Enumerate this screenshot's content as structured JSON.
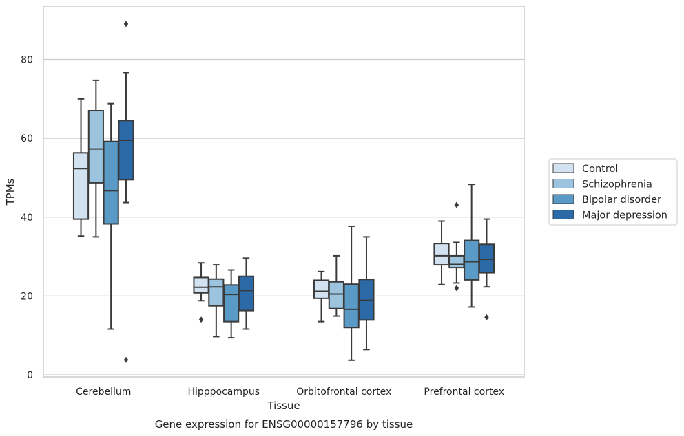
{
  "caption": "Gene expression for ENSG00000157796 by tissue",
  "chart_data": {
    "type": "box",
    "title": "",
    "xlabel": "Tissue",
    "ylabel": "TPMs",
    "ylim": [
      0,
      93
    ],
    "yticks": [
      0,
      20,
      40,
      60,
      80
    ],
    "grid": "horizontal",
    "legend_position": "right",
    "categories": [
      "Cerebellum",
      "Hipppocampus",
      "Orbitofrontal cortex",
      "Prefrontal cortex"
    ],
    "series": [
      {
        "name": "Control",
        "color": "#d3e2f1",
        "boxes": [
          {
            "whislo": 35.2,
            "q1": 39.5,
            "med": 52.3,
            "q3": 56.3,
            "whishi": 70.0,
            "fliers": []
          },
          {
            "whislo": 18.8,
            "q1": 20.8,
            "med": 22.2,
            "q3": 24.7,
            "whishi": 28.4,
            "fliers": [
              14.0
            ]
          },
          {
            "whislo": 13.5,
            "q1": 19.4,
            "med": 21.2,
            "q3": 24.0,
            "whishi": 26.2,
            "fliers": []
          },
          {
            "whislo": 22.9,
            "q1": 27.9,
            "med": 30.2,
            "q3": 33.3,
            "whishi": 39.0,
            "fliers": []
          }
        ]
      },
      {
        "name": "Schizophrenia",
        "color": "#9cc4de",
        "boxes": [
          {
            "whislo": 35.0,
            "q1": 48.7,
            "med": 57.3,
            "q3": 67.0,
            "whishi": 74.7,
            "fliers": []
          },
          {
            "whislo": 9.7,
            "q1": 17.5,
            "med": 22.3,
            "q3": 24.3,
            "whishi": 27.9,
            "fliers": []
          },
          {
            "whislo": 14.9,
            "q1": 16.8,
            "med": 20.5,
            "q3": 23.6,
            "whishi": 30.2,
            "fliers": []
          },
          {
            "whislo": 23.3,
            "q1": 27.2,
            "med": 28.0,
            "q3": 30.2,
            "whishi": 33.6,
            "fliers": [
              22.0,
              43.1
            ]
          }
        ]
      },
      {
        "name": "Bipolar disorder",
        "color": "#5a9ac6",
        "boxes": [
          {
            "whislo": 11.6,
            "q1": 38.3,
            "med": 46.7,
            "q3": 59.2,
            "whishi": 68.8,
            "fliers": []
          },
          {
            "whislo": 9.4,
            "q1": 13.5,
            "med": 20.4,
            "q3": 22.8,
            "whishi": 26.6,
            "fliers": []
          },
          {
            "whislo": 3.7,
            "q1": 12.0,
            "med": 16.6,
            "q3": 23.0,
            "whishi": 37.7,
            "fliers": []
          },
          {
            "whislo": 17.2,
            "q1": 24.1,
            "med": 28.7,
            "q3": 34.1,
            "whishi": 48.3,
            "fliers": []
          }
        ]
      },
      {
        "name": "Major depression",
        "color": "#2b6aa7",
        "boxes": [
          {
            "whislo": 43.7,
            "q1": 49.5,
            "med": 59.5,
            "q3": 64.5,
            "whishi": 76.7,
            "fliers": [
              3.8,
              89.0
            ]
          },
          {
            "whislo": 11.6,
            "q1": 16.3,
            "med": 21.4,
            "q3": 25.0,
            "whishi": 29.6,
            "fliers": []
          },
          {
            "whislo": 6.4,
            "q1": 13.9,
            "med": 18.9,
            "q3": 24.2,
            "whishi": 35.0,
            "fliers": []
          },
          {
            "whislo": 22.3,
            "q1": 25.9,
            "med": 29.3,
            "q3": 33.1,
            "whishi": 39.5,
            "fliers": [
              14.6
            ]
          }
        ]
      }
    ]
  }
}
